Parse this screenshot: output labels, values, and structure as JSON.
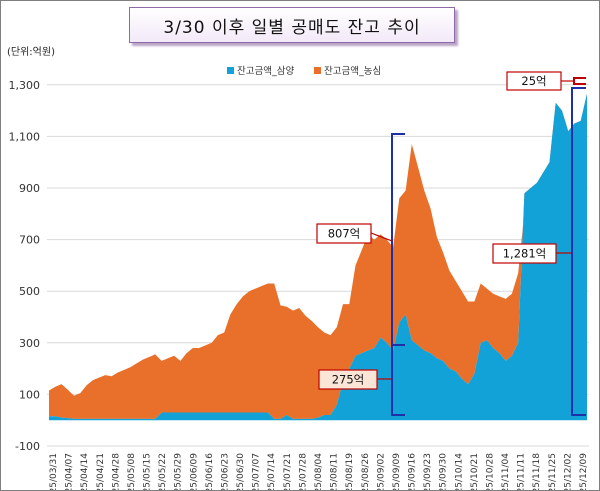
{
  "title": "3/30 이후 일별 공매도 잔고 추이",
  "unit_label": "(단위:억원)",
  "colors": {
    "samyang": "#12a2d8",
    "nongshim": "#e9702b",
    "bracket": "#1f2fa8",
    "callout_border": "#c00000",
    "callout_fill": "#fbe5d6",
    "grid": "#d9d9d9"
  },
  "chart_data": {
    "type": "area",
    "stacked": true,
    "ylim": [
      -100,
      1400
    ],
    "yticks": [
      "-100",
      "100",
      "300",
      "500",
      "700",
      "900",
      "1,100",
      "1,300"
    ],
    "ytick_values": [
      -100,
      100,
      300,
      500,
      700,
      900,
      1100,
      1300
    ],
    "grid": true,
    "legend_position": "top-center",
    "xtick_labels": [
      "2025/03/31",
      "2025/04/07",
      "2025/04/14",
      "2025/04/21",
      "2025/04/28",
      "2025/05/08",
      "2025/05/15",
      "2025/05/22",
      "2025/05/29",
      "2025/06/09",
      "2025/06/16",
      "2025/06/23",
      "2025/06/30",
      "2025/07/07",
      "2025/07/14",
      "2025/07/21",
      "2025/07/28",
      "2025/08/04",
      "2025/08/11",
      "2025/08/19",
      "2025/08/26",
      "2025/09/02",
      "2025/09/09",
      "2025/09/16",
      "2025/09/23",
      "2025/09/30",
      "2025/10/14",
      "2025/10/21",
      "2025/10/28",
      "2025/11/04",
      "2025/11/11",
      "2025/11/18",
      "2025/11/25",
      "2025/12/02",
      "2025/12/09"
    ],
    "series": [
      {
        "name": "잔고금액_삼양",
        "values": [
          15,
          15,
          10,
          8,
          5,
          5,
          5,
          5,
          5,
          5,
          5,
          5,
          5,
          5,
          5,
          5,
          5,
          5,
          30,
          30,
          30,
          30,
          30,
          30,
          30,
          30,
          30,
          30,
          30,
          30,
          30,
          30,
          30,
          30,
          30,
          30,
          5,
          5,
          20,
          5,
          5,
          5,
          5,
          10,
          20,
          20,
          60,
          150,
          200,
          250,
          260,
          270,
          280,
          320,
          300,
          270,
          380,
          410,
          310,
          290,
          270,
          260,
          240,
          230,
          200,
          190,
          160,
          140,
          180,
          300,
          310,
          280,
          260,
          230,
          250,
          300,
          880,
          900,
          920,
          960,
          1000,
          1230,
          1200,
          1120,
          1150,
          1160,
          1265
        ]
      },
      {
        "name": "잔고금액_농심",
        "values": [
          100,
          115,
          130,
          110,
          90,
          100,
          130,
          150,
          160,
          170,
          165,
          180,
          190,
          200,
          215,
          230,
          240,
          250,
          200,
          210,
          220,
          200,
          230,
          250,
          250,
          260,
          270,
          300,
          310,
          380,
          420,
          450,
          470,
          480,
          490,
          500,
          525,
          440,
          420,
          420,
          430,
          400,
          380,
          350,
          320,
          310,
          300,
          300,
          250,
          350,
          400,
          450,
          420,
          400,
          400,
          400,
          480,
          480,
          760,
          690,
          620,
          560,
          470,
          420,
          380,
          350,
          340,
          320,
          280,
          230,
          200,
          210,
          220,
          240,
          240,
          270,
          -70,
          -40,
          -20,
          -20,
          -10,
          -20,
          -15,
          -10,
          -50,
          -60,
          -45
        ]
      }
    ],
    "annotations": [
      "25억",
      "807억",
      "1,281억",
      "275억"
    ]
  }
}
